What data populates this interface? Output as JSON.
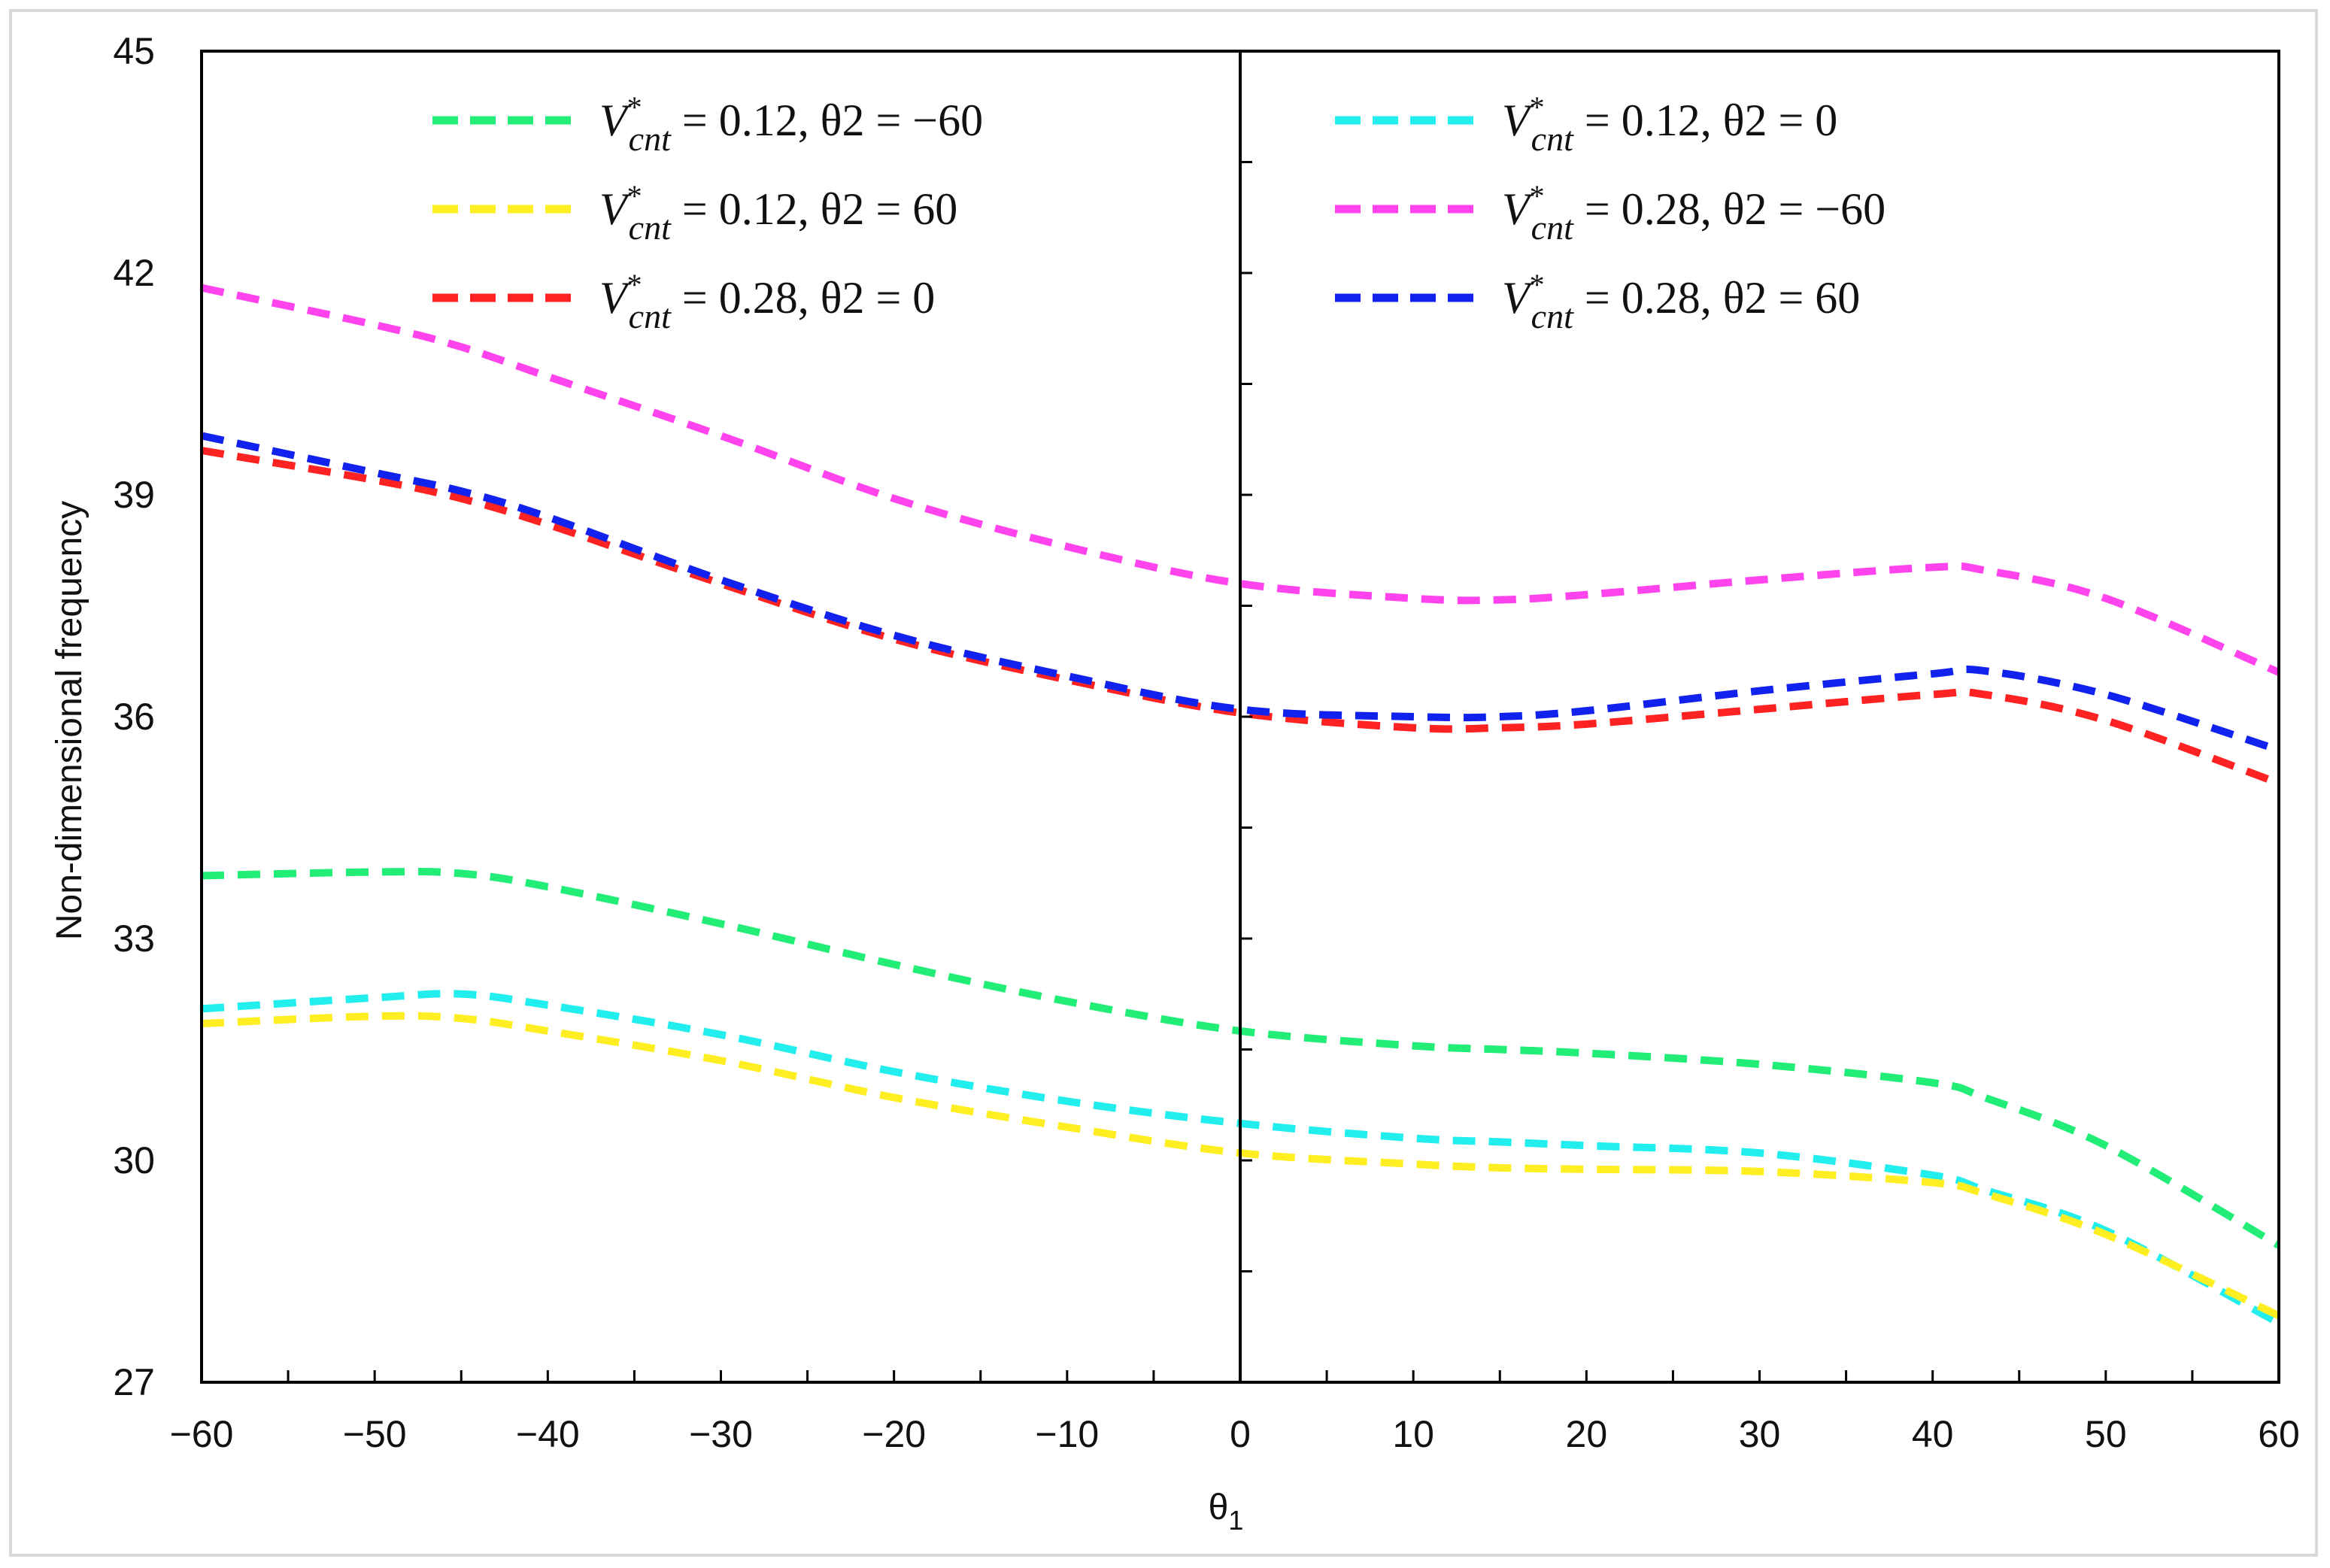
{
  "chart_data": {
    "type": "line",
    "title": "",
    "xlabel": "θ",
    "xlabel_sub": "1",
    "ylabel": "Non-dimensional frequency",
    "xlim": [
      -60,
      60
    ],
    "ylim": [
      27,
      45
    ],
    "xticks": [
      "−60",
      "−50",
      "−40",
      "−30",
      "−20",
      "−10",
      "0",
      "10",
      "20",
      "30",
      "40",
      "50",
      "60"
    ],
    "yticks": [
      "27",
      "30",
      "33",
      "36",
      "39",
      "42",
      "45"
    ],
    "x": [
      -60,
      -50,
      -45,
      -40,
      -30,
      -20,
      -10,
      0,
      10,
      15,
      20,
      30,
      40,
      43,
      50,
      60
    ],
    "legend_position": "top",
    "series": [
      {
        "name": "V*cnt = 0.12, θ2 = −60",
        "vvar": "V",
        "sub": "cnt",
        "sup": "*",
        "rest": " = 0.12, θ2 = −60",
        "color": "#22ee77",
        "values": [
          33.85,
          33.9,
          33.88,
          33.7,
          33.2,
          32.65,
          32.15,
          31.75,
          31.55,
          31.5,
          31.45,
          31.3,
          31.05,
          30.85,
          30.2,
          28.85
        ]
      },
      {
        "name": "V*cnt = 0.12, θ2 = 0",
        "vvar": "V",
        "sub": "cnt",
        "sup": "*",
        "rest": " = 0.12, θ2 = 0",
        "color": "#22eeee",
        "values": [
          32.05,
          32.2,
          32.25,
          32.1,
          31.7,
          31.2,
          30.8,
          30.5,
          30.3,
          30.25,
          30.2,
          30.1,
          29.8,
          29.6,
          29.05,
          27.8
        ]
      },
      {
        "name": "V*cnt = 0.12, θ2 = 60",
        "vvar": "V",
        "sub": "cnt",
        "sup": "*",
        "rest": " = 0.12, θ2 = 60",
        "color": "#ffee22",
        "values": [
          31.85,
          31.95,
          31.92,
          31.75,
          31.35,
          30.85,
          30.45,
          30.1,
          29.95,
          29.9,
          29.88,
          29.85,
          29.7,
          29.55,
          29.0,
          27.9
        ]
      },
      {
        "name": "V*cnt = 0.28, θ2 = −60",
        "vvar": "V",
        "sub": "cnt",
        "sup": "*",
        "rest": " = 0.28, θ2 = −60",
        "color": "#ff44ee",
        "values": [
          41.8,
          41.3,
          41.0,
          40.6,
          39.8,
          38.95,
          38.3,
          37.8,
          37.6,
          37.58,
          37.65,
          37.85,
          38.02,
          37.98,
          37.6,
          36.6
        ]
      },
      {
        "name": "V*cnt = 0.28, θ2 = 0",
        "vvar": "V",
        "sub": "cnt",
        "sup": "*",
        "rest": " = 0.28, θ2 = 0",
        "color": "#ff2222",
        "values": [
          39.6,
          39.2,
          38.95,
          38.6,
          37.8,
          37.05,
          36.5,
          36.05,
          35.85,
          35.85,
          35.9,
          36.1,
          36.3,
          36.3,
          35.95,
          35.1
        ]
      },
      {
        "name": "V*cnt = 0.28, θ2 = 60",
        "vvar": "V",
        "sub": "cnt",
        "sup": "*",
        "rest": " = 0.28, θ2 = 60",
        "color": "#1122ee",
        "values": [
          39.8,
          39.3,
          39.05,
          38.7,
          37.85,
          37.1,
          36.55,
          36.1,
          36.0,
          36.0,
          36.08,
          36.35,
          36.58,
          36.62,
          36.3,
          35.55
        ]
      }
    ]
  }
}
